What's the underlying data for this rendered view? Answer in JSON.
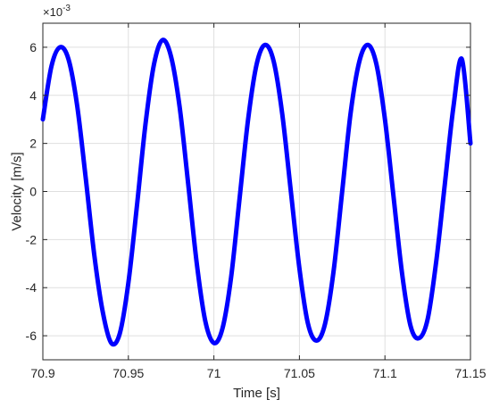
{
  "chart_data": {
    "type": "line",
    "title": "",
    "xlabel": "Time [s]",
    "ylabel": "Velocity [m/s]",
    "y_exponent": {
      "base": "×10",
      "power": "-3"
    },
    "xlim": [
      70.9,
      71.15
    ],
    "ylim": [
      -7,
      7
    ],
    "x_ticks": [
      70.9,
      70.95,
      71.0,
      71.05,
      71.1,
      71.15
    ],
    "x_tick_labels": [
      "70.9",
      "70.95",
      "71",
      "71.05",
      "71.1",
      "71.15"
    ],
    "y_ticks": [
      -6,
      -4,
      -2,
      0,
      2,
      4,
      6
    ],
    "y_tick_labels": [
      "-6",
      "-4",
      "-2",
      "0",
      "2",
      "4",
      "6"
    ],
    "grid": true,
    "legend": "none",
    "series": [
      {
        "color": "#0000ff",
        "x": [
          70.9,
          70.905,
          70.91,
          70.915,
          70.92,
          70.925,
          70.93,
          70.935,
          70.94,
          70.945,
          70.95,
          70.955,
          70.96,
          70.965,
          70.97,
          70.975,
          70.98,
          70.985,
          70.99,
          70.995,
          71.0,
          71.005,
          71.01,
          71.015,
          71.02,
          71.025,
          71.03,
          71.035,
          71.04,
          71.045,
          71.05,
          71.055,
          71.06,
          71.065,
          71.07,
          71.075,
          71.08,
          71.085,
          71.09,
          71.095,
          71.1,
          71.105,
          71.11,
          71.115,
          71.12,
          71.125,
          71.13,
          71.135,
          71.14,
          71.145,
          71.15
        ],
        "y": [
          3.0,
          5.2,
          6.0,
          5.5,
          3.6,
          0.6,
          -2.6,
          -5.0,
          -6.3,
          -5.9,
          -3.8,
          -0.6,
          2.8,
          5.3,
          6.3,
          5.6,
          3.5,
          0.3,
          -3.0,
          -5.4,
          -6.3,
          -5.7,
          -3.6,
          -0.3,
          3.0,
          5.3,
          6.1,
          5.4,
          3.2,
          0.0,
          -3.2,
          -5.5,
          -6.2,
          -5.5,
          -3.3,
          0.0,
          3.3,
          5.4,
          6.1,
          5.3,
          3.0,
          -0.2,
          -3.4,
          -5.6,
          -6.1,
          -5.3,
          -2.9,
          0.3,
          3.5,
          5.5,
          2.0
        ]
      }
    ]
  }
}
